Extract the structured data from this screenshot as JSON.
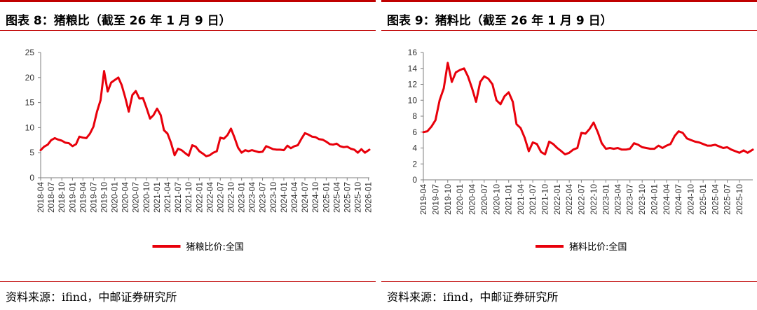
{
  "panels": [
    {
      "title": "图表 8：猪粮比（截至 26 年 1 月 9 日）",
      "source": "资料来源：ifind，中邮证券研究所"
    },
    {
      "title": "图表 9：猪料比（截至 26 年 1 月 9 日）",
      "source": "资料来源：ifind，中邮证券研究所"
    }
  ],
  "chart_data": [
    {
      "type": "line",
      "title": "",
      "xlabel": "",
      "ylabel": "",
      "ylim": [
        0,
        25
      ],
      "yticks": [
        0,
        5,
        10,
        15,
        20,
        25
      ],
      "x_tick_labels": [
        "2018-04",
        "2018-07",
        "2018-10",
        "2019-01",
        "2019-04",
        "2019-07",
        "2019-10",
        "2020-01",
        "2020-04",
        "2020-07",
        "2020-10",
        "2021-01",
        "2021-04",
        "2021-07",
        "2021-10",
        "2022-01",
        "2022-04",
        "2022-07",
        "2022-10",
        "2023-01",
        "2023-04",
        "2023-07",
        "2023-10",
        "2024-01",
        "2024-04",
        "2024-07",
        "2024-10",
        "2025-01",
        "2025-04",
        "2025-07",
        "2025-10",
        "2026-01"
      ],
      "xlim": [
        "2018-04-01",
        "2026-01-09"
      ],
      "grid": false,
      "legend_position": "bottom",
      "series": [
        {
          "name": "猪粮比价:全国",
          "color": "#e8000b",
          "points": [
            [
              "2018-04-01",
              5.5
            ],
            [
              "2018-05-01",
              6.2
            ],
            [
              "2018-06-01",
              6.6
            ],
            [
              "2018-07-01",
              7.5
            ],
            [
              "2018-08-01",
              7.9
            ],
            [
              "2018-09-01",
              7.6
            ],
            [
              "2018-10-01",
              7.4
            ],
            [
              "2018-11-01",
              7.0
            ],
            [
              "2018-12-01",
              6.9
            ],
            [
              "2019-01-01",
              6.3
            ],
            [
              "2019-02-01",
              6.7
            ],
            [
              "2019-03-01",
              8.2
            ],
            [
              "2019-04-01",
              8.0
            ],
            [
              "2019-05-01",
              7.9
            ],
            [
              "2019-06-01",
              8.8
            ],
            [
              "2019-07-01",
              10.2
            ],
            [
              "2019-08-01",
              13.2
            ],
            [
              "2019-09-01",
              15.5
            ],
            [
              "2019-10-01",
              21.3
            ],
            [
              "2019-11-01",
              17.2
            ],
            [
              "2019-12-01",
              19.0
            ],
            [
              "2020-01-01",
              19.5
            ],
            [
              "2020-02-01",
              20.0
            ],
            [
              "2020-03-01",
              18.5
            ],
            [
              "2020-04-01",
              16.0
            ],
            [
              "2020-05-01",
              13.2
            ],
            [
              "2020-06-01",
              16.5
            ],
            [
              "2020-07-01",
              17.3
            ],
            [
              "2020-08-01",
              15.8
            ],
            [
              "2020-09-01",
              15.9
            ],
            [
              "2020-10-01",
              14.0
            ],
            [
              "2020-11-01",
              11.8
            ],
            [
              "2020-12-01",
              12.5
            ],
            [
              "2021-01-01",
              13.8
            ],
            [
              "2021-02-01",
              12.5
            ],
            [
              "2021-03-01",
              9.5
            ],
            [
              "2021-04-01",
              8.8
            ],
            [
              "2021-05-01",
              7.0
            ],
            [
              "2021-06-01",
              4.5
            ],
            [
              "2021-07-01",
              5.8
            ],
            [
              "2021-08-01",
              5.5
            ],
            [
              "2021-09-01",
              4.9
            ],
            [
              "2021-10-01",
              4.4
            ],
            [
              "2021-11-01",
              6.5
            ],
            [
              "2021-12-01",
              6.2
            ],
            [
              "2022-01-01",
              5.3
            ],
            [
              "2022-02-01",
              4.8
            ],
            [
              "2022-03-01",
              4.3
            ],
            [
              "2022-04-01",
              4.5
            ],
            [
              "2022-05-01",
              5.0
            ],
            [
              "2022-06-01",
              5.3
            ],
            [
              "2022-07-01",
              8.0
            ],
            [
              "2022-08-01",
              7.8
            ],
            [
              "2022-09-01",
              8.5
            ],
            [
              "2022-10-01",
              9.8
            ],
            [
              "2022-11-01",
              8.0
            ],
            [
              "2022-12-01",
              6.0
            ],
            [
              "2023-01-01",
              5.0
            ],
            [
              "2023-02-01",
              5.5
            ],
            [
              "2023-03-01",
              5.3
            ],
            [
              "2023-04-01",
              5.5
            ],
            [
              "2023-05-01",
              5.3
            ],
            [
              "2023-06-01",
              5.1
            ],
            [
              "2023-07-01",
              5.2
            ],
            [
              "2023-08-01",
              6.3
            ],
            [
              "2023-09-01",
              6.0
            ],
            [
              "2023-10-01",
              5.7
            ],
            [
              "2023-11-01",
              5.6
            ],
            [
              "2023-12-01",
              5.6
            ],
            [
              "2024-01-01",
              5.5
            ],
            [
              "2024-02-01",
              6.4
            ],
            [
              "2024-03-01",
              5.9
            ],
            [
              "2024-04-01",
              6.3
            ],
            [
              "2024-05-01",
              6.5
            ],
            [
              "2024-06-01",
              7.8
            ],
            [
              "2024-07-01",
              8.9
            ],
            [
              "2024-08-01",
              8.6
            ],
            [
              "2024-09-01",
              8.2
            ],
            [
              "2024-10-01",
              8.1
            ],
            [
              "2024-11-01",
              7.7
            ],
            [
              "2024-12-01",
              7.6
            ],
            [
              "2025-01-01",
              7.2
            ],
            [
              "2025-02-01",
              6.7
            ],
            [
              "2025-03-01",
              6.6
            ],
            [
              "2025-04-01",
              6.8
            ],
            [
              "2025-05-01",
              6.3
            ],
            [
              "2025-06-01",
              6.1
            ],
            [
              "2025-07-01",
              6.2
            ],
            [
              "2025-08-01",
              5.8
            ],
            [
              "2025-09-01",
              5.6
            ],
            [
              "2025-10-01",
              5.0
            ],
            [
              "2025-11-01",
              5.7
            ],
            [
              "2025-12-01",
              5.0
            ],
            [
              "2026-01-09",
              5.6
            ]
          ]
        }
      ]
    },
    {
      "type": "line",
      "title": "",
      "xlabel": "",
      "ylabel": "",
      "ylim": [
        0,
        16
      ],
      "yticks": [
        0,
        2,
        4,
        6,
        8,
        10,
        12,
        14,
        16
      ],
      "x_tick_labels": [
        "2019-04",
        "2019-07",
        "2019-10",
        "2020-01",
        "2020-04",
        "2020-07",
        "2020-10",
        "2021-01",
        "2021-04",
        "2021-07",
        "2021-10",
        "2022-01",
        "2022-04",
        "2022-07",
        "2022-10",
        "2023-01",
        "2023-04",
        "2023-07",
        "2023-10",
        "2024-01",
        "2024-04",
        "2024-07",
        "2024-10",
        "2025-01",
        "2025-04",
        "2025-07",
        "2025-10"
      ],
      "xlim": [
        "2019-04-01",
        "2026-01-09"
      ],
      "grid": false,
      "legend_position": "bottom",
      "series": [
        {
          "name": "猪料比价:全国",
          "color": "#e8000b",
          "points": [
            [
              "2019-04-01",
              6.0
            ],
            [
              "2019-05-01",
              6.1
            ],
            [
              "2019-06-01",
              6.7
            ],
            [
              "2019-07-01",
              7.5
            ],
            [
              "2019-08-01",
              10.0
            ],
            [
              "2019-09-01",
              11.5
            ],
            [
              "2019-10-01",
              14.7
            ],
            [
              "2019-11-01",
              12.3
            ],
            [
              "2019-12-01",
              13.5
            ],
            [
              "2020-01-01",
              13.8
            ],
            [
              "2020-02-01",
              14.0
            ],
            [
              "2020-03-01",
              13.0
            ],
            [
              "2020-04-01",
              11.5
            ],
            [
              "2020-05-01",
              9.8
            ],
            [
              "2020-06-01",
              12.3
            ],
            [
              "2020-07-01",
              13.0
            ],
            [
              "2020-08-01",
              12.7
            ],
            [
              "2020-09-01",
              12.0
            ],
            [
              "2020-10-01",
              10.0
            ],
            [
              "2020-11-01",
              9.5
            ],
            [
              "2020-12-01",
              10.5
            ],
            [
              "2021-01-01",
              11.0
            ],
            [
              "2021-02-01",
              9.8
            ],
            [
              "2021-03-01",
              7.0
            ],
            [
              "2021-04-01",
              6.5
            ],
            [
              "2021-05-01",
              5.3
            ],
            [
              "2021-06-01",
              3.6
            ],
            [
              "2021-07-01",
              4.7
            ],
            [
              "2021-08-01",
              4.5
            ],
            [
              "2021-09-01",
              3.5
            ],
            [
              "2021-10-01",
              3.2
            ],
            [
              "2021-11-01",
              4.8
            ],
            [
              "2021-12-01",
              4.5
            ],
            [
              "2022-01-01",
              4.0
            ],
            [
              "2022-02-01",
              3.6
            ],
            [
              "2022-03-01",
              3.2
            ],
            [
              "2022-04-01",
              3.4
            ],
            [
              "2022-05-01",
              3.8
            ],
            [
              "2022-06-01",
              4.0
            ],
            [
              "2022-07-01",
              5.9
            ],
            [
              "2022-08-01",
              5.8
            ],
            [
              "2022-09-01",
              6.4
            ],
            [
              "2022-10-01",
              7.2
            ],
            [
              "2022-11-01",
              6.0
            ],
            [
              "2022-12-01",
              4.6
            ],
            [
              "2023-01-01",
              3.9
            ],
            [
              "2023-02-01",
              4.0
            ],
            [
              "2023-03-01",
              3.9
            ],
            [
              "2023-04-01",
              4.0
            ],
            [
              "2023-05-01",
              3.8
            ],
            [
              "2023-06-01",
              3.8
            ],
            [
              "2023-07-01",
              3.9
            ],
            [
              "2023-08-01",
              4.6
            ],
            [
              "2023-09-01",
              4.4
            ],
            [
              "2023-10-01",
              4.1
            ],
            [
              "2023-11-01",
              4.0
            ],
            [
              "2023-12-01",
              3.9
            ],
            [
              "2024-01-01",
              3.9
            ],
            [
              "2024-02-01",
              4.3
            ],
            [
              "2024-03-01",
              4.0
            ],
            [
              "2024-04-01",
              4.3
            ],
            [
              "2024-05-01",
              4.5
            ],
            [
              "2024-06-01",
              5.5
            ],
            [
              "2024-07-01",
              6.1
            ],
            [
              "2024-08-01",
              5.9
            ],
            [
              "2024-09-01",
              5.2
            ],
            [
              "2024-10-01",
              5.0
            ],
            [
              "2024-11-01",
              4.8
            ],
            [
              "2024-12-01",
              4.7
            ],
            [
              "2025-01-01",
              4.5
            ],
            [
              "2025-02-01",
              4.3
            ],
            [
              "2025-03-01",
              4.3
            ],
            [
              "2025-04-01",
              4.4
            ],
            [
              "2025-05-01",
              4.2
            ],
            [
              "2025-06-01",
              4.0
            ],
            [
              "2025-07-01",
              4.1
            ],
            [
              "2025-08-01",
              3.8
            ],
            [
              "2025-09-01",
              3.6
            ],
            [
              "2025-10-01",
              3.4
            ],
            [
              "2025-11-01",
              3.7
            ],
            [
              "2025-12-01",
              3.4
            ],
            [
              "2026-01-09",
              3.8
            ]
          ]
        }
      ]
    }
  ]
}
